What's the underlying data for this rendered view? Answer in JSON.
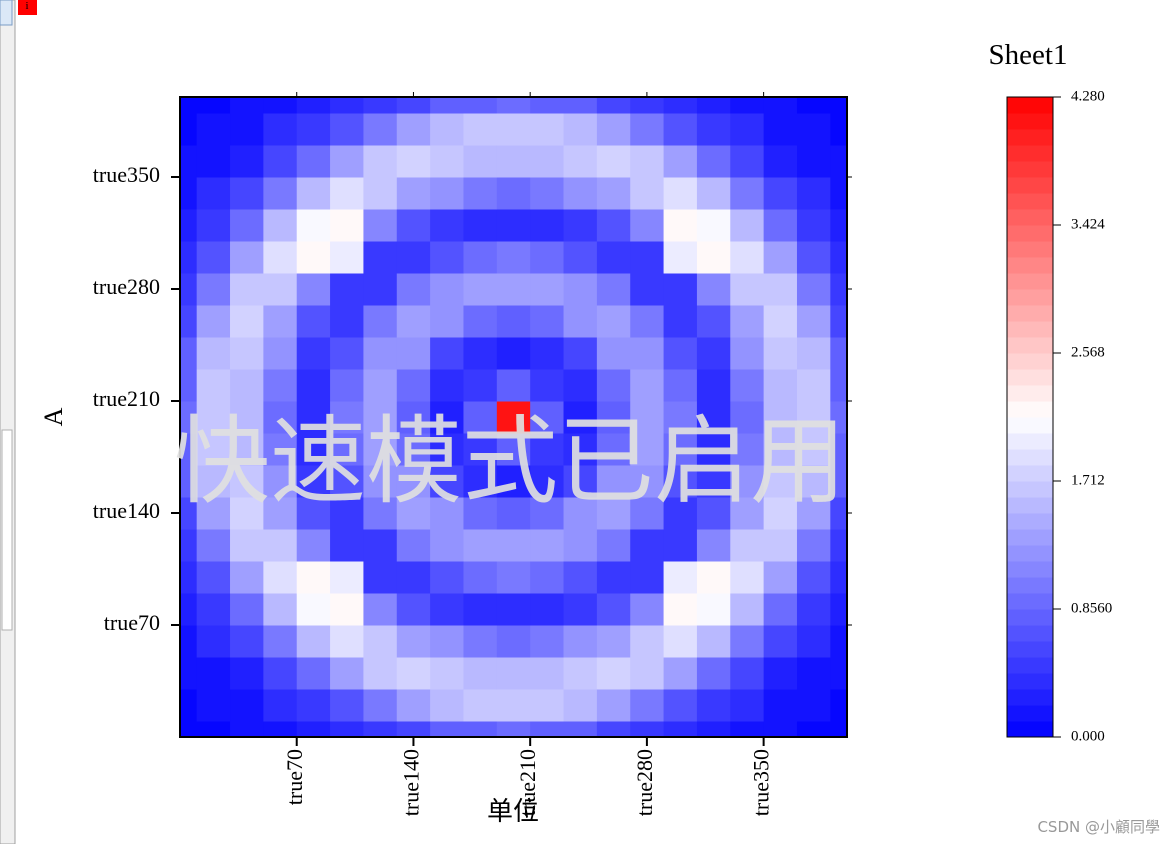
{
  "ui": {
    "icon": "i"
  },
  "chart_data": {
    "type": "heatmap",
    "title": "Sheet1",
    "xlabel": "单位",
    "ylabel": "A",
    "watermark": "快速模式已启用",
    "credit": "CSDN @小顧同學",
    "xlim": [
      0,
      400
    ],
    "ylim": [
      0,
      400
    ],
    "xticks": [
      {
        "value": 70,
        "label": "true70"
      },
      {
        "value": 140,
        "label": "true140"
      },
      {
        "value": 210,
        "label": "true210"
      },
      {
        "value": 280,
        "label": "true280"
      },
      {
        "value": 350,
        "label": "true350"
      }
    ],
    "yticks": [
      {
        "value": 70,
        "label": "true70"
      },
      {
        "value": 140,
        "label": "true140"
      },
      {
        "value": 210,
        "label": "true210"
      },
      {
        "value": 280,
        "label": "true280"
      },
      {
        "value": 350,
        "label": "true350"
      }
    ],
    "clim": [
      0,
      4.28
    ],
    "cticks": [
      {
        "value": 0,
        "label": "0.000"
      },
      {
        "value": 0.856,
        "label": "0.8560"
      },
      1.712,
      2.568,
      3.424,
      {
        "value": 4.28,
        "label": "4.280"
      }
    ],
    "levels": 40,
    "colors": [
      "#0000ff",
      "#ffffff",
      "#ff0000"
    ],
    "x": [
      0,
      20,
      40,
      60,
      80,
      100,
      120,
      140,
      160,
      180,
      200,
      220,
      240,
      260,
      280,
      300,
      320,
      340,
      360,
      380,
      400
    ],
    "y": [
      0,
      20,
      40,
      60,
      80,
      100,
      120,
      140,
      160,
      180,
      200,
      220,
      240,
      260,
      280,
      300,
      320,
      340,
      360,
      380,
      400
    ],
    "z": [
      [
        0.08,
        0.1,
        0.12,
        0.2,
        0.3,
        0.35,
        0.5,
        0.6,
        0.75,
        0.85,
        0.9,
        0.85,
        0.75,
        0.6,
        0.5,
        0.35,
        0.3,
        0.2,
        0.12,
        0.1,
        0.08
      ],
      [
        0.1,
        0.12,
        0.2,
        0.35,
        0.5,
        0.7,
        1.0,
        1.3,
        1.5,
        1.7,
        1.7,
        1.7,
        1.5,
        1.3,
        1.0,
        0.7,
        0.5,
        0.35,
        0.2,
        0.12,
        0.1
      ],
      [
        0.12,
        0.2,
        0.3,
        0.55,
        0.9,
        1.3,
        1.7,
        1.8,
        1.7,
        1.6,
        1.6,
        1.6,
        1.7,
        1.8,
        1.7,
        1.3,
        0.9,
        0.55,
        0.3,
        0.2,
        0.12
      ],
      [
        0.2,
        0.35,
        0.55,
        1.0,
        1.6,
        1.9,
        1.7,
        1.3,
        1.2,
        1.0,
        0.9,
        1.0,
        1.2,
        1.3,
        1.7,
        1.9,
        1.6,
        1.0,
        0.55,
        0.35,
        0.2
      ],
      [
        0.3,
        0.5,
        0.9,
        1.6,
        2.1,
        2.2,
        1.1,
        0.7,
        0.5,
        0.4,
        0.4,
        0.4,
        0.5,
        0.7,
        1.1,
        2.2,
        2.1,
        1.6,
        0.9,
        0.5,
        0.3
      ],
      [
        0.35,
        0.7,
        1.3,
        1.9,
        2.2,
        2.0,
        0.5,
        0.45,
        0.7,
        0.9,
        1.0,
        0.9,
        0.7,
        0.45,
        0.5,
        2.0,
        2.2,
        1.9,
        1.3,
        0.7,
        0.35
      ],
      [
        0.5,
        1.0,
        1.7,
        1.7,
        1.1,
        0.5,
        0.5,
        1.0,
        1.2,
        1.3,
        1.3,
        1.3,
        1.2,
        1.0,
        0.5,
        0.5,
        1.1,
        1.7,
        1.7,
        1.0,
        0.5
      ],
      [
        0.6,
        1.3,
        1.8,
        1.3,
        0.7,
        0.45,
        1.0,
        1.3,
        1.2,
        0.9,
        0.8,
        0.9,
        1.2,
        1.3,
        1.0,
        0.45,
        0.7,
        1.3,
        1.8,
        1.3,
        0.6
      ],
      [
        0.75,
        1.5,
        1.7,
        1.2,
        0.5,
        0.7,
        1.2,
        1.2,
        0.6,
        0.35,
        0.3,
        0.35,
        0.6,
        1.2,
        1.2,
        0.7,
        0.5,
        1.2,
        1.7,
        1.5,
        0.75
      ],
      [
        0.85,
        1.7,
        1.6,
        1.0,
        0.4,
        0.9,
        1.3,
        0.9,
        0.35,
        0.5,
        0.8,
        0.5,
        0.35,
        0.9,
        1.3,
        0.9,
        0.4,
        1.0,
        1.6,
        1.7,
        0.85
      ],
      [
        0.9,
        1.7,
        1.6,
        0.9,
        0.4,
        1.0,
        1.3,
        0.8,
        0.3,
        0.8,
        4.1,
        0.8,
        0.3,
        0.8,
        1.3,
        1.0,
        0.4,
        0.9,
        1.6,
        1.7,
        0.9
      ],
      [
        0.85,
        1.7,
        1.6,
        1.0,
        0.4,
        0.9,
        1.3,
        0.9,
        0.35,
        0.5,
        0.8,
        0.5,
        0.35,
        0.9,
        1.3,
        0.9,
        0.4,
        1.0,
        1.6,
        1.7,
        0.85
      ],
      [
        0.75,
        1.5,
        1.7,
        1.2,
        0.5,
        0.7,
        1.2,
        1.2,
        0.6,
        0.35,
        0.3,
        0.35,
        0.6,
        1.2,
        1.2,
        0.7,
        0.5,
        1.2,
        1.7,
        1.5,
        0.75
      ],
      [
        0.6,
        1.3,
        1.8,
        1.3,
        0.7,
        0.45,
        1.0,
        1.3,
        1.2,
        0.9,
        0.8,
        0.9,
        1.2,
        1.3,
        1.0,
        0.45,
        0.7,
        1.3,
        1.8,
        1.3,
        0.6
      ],
      [
        0.5,
        1.0,
        1.7,
        1.7,
        1.1,
        0.5,
        0.5,
        1.0,
        1.2,
        1.3,
        1.3,
        1.3,
        1.2,
        1.0,
        0.5,
        0.5,
        1.1,
        1.7,
        1.7,
        1.0,
        0.5
      ],
      [
        0.35,
        0.7,
        1.3,
        1.9,
        2.2,
        2.0,
        0.5,
        0.45,
        0.7,
        0.9,
        1.0,
        0.9,
        0.7,
        0.45,
        0.5,
        2.0,
        2.2,
        1.9,
        1.3,
        0.7,
        0.35
      ],
      [
        0.3,
        0.5,
        0.9,
        1.6,
        2.1,
        2.2,
        1.1,
        0.7,
        0.5,
        0.4,
        0.4,
        0.4,
        0.5,
        0.7,
        1.1,
        2.2,
        2.1,
        1.6,
        0.9,
        0.5,
        0.3
      ],
      [
        0.2,
        0.35,
        0.55,
        1.0,
        1.6,
        1.9,
        1.7,
        1.3,
        1.2,
        1.0,
        0.9,
        1.0,
        1.2,
        1.3,
        1.7,
        1.9,
        1.6,
        1.0,
        0.55,
        0.35,
        0.2
      ],
      [
        0.12,
        0.2,
        0.3,
        0.55,
        0.9,
        1.3,
        1.7,
        1.8,
        1.7,
        1.6,
        1.6,
        1.6,
        1.7,
        1.8,
        1.7,
        1.3,
        0.9,
        0.55,
        0.3,
        0.2,
        0.12
      ],
      [
        0.1,
        0.12,
        0.2,
        0.35,
        0.5,
        0.7,
        1.0,
        1.3,
        1.5,
        1.7,
        1.7,
        1.7,
        1.5,
        1.3,
        1.0,
        0.7,
        0.5,
        0.35,
        0.2,
        0.12,
        0.1
      ],
      [
        0.08,
        0.1,
        0.12,
        0.2,
        0.3,
        0.35,
        0.5,
        0.6,
        0.75,
        0.85,
        0.9,
        0.85,
        0.75,
        0.6,
        0.5,
        0.35,
        0.3,
        0.2,
        0.12,
        0.1,
        0.08
      ]
    ]
  }
}
